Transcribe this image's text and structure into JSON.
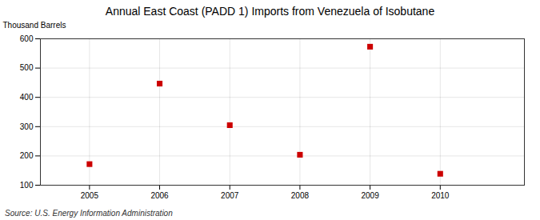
{
  "chart_data": {
    "type": "scatter",
    "title": "Annual East Coast (PADD 1) Imports from Venezuela of Isobutane",
    "ylabel": "Thousand Barrels",
    "source": "Source: U.S. Energy Information Administration",
    "x": [
      2005,
      2006,
      2007,
      2008,
      2009,
      2010
    ],
    "values": [
      172,
      447,
      305,
      204,
      573,
      139
    ],
    "color": "#cc0000",
    "marker": "square",
    "xlim": [
      2004.3,
      2011.2
    ],
    "xticks": [
      2005,
      2006,
      2007,
      2008,
      2009,
      2010
    ],
    "ylim": [
      100,
      600
    ],
    "yticks": [
      100,
      200,
      300,
      400,
      500,
      600
    ],
    "grid": true
  }
}
